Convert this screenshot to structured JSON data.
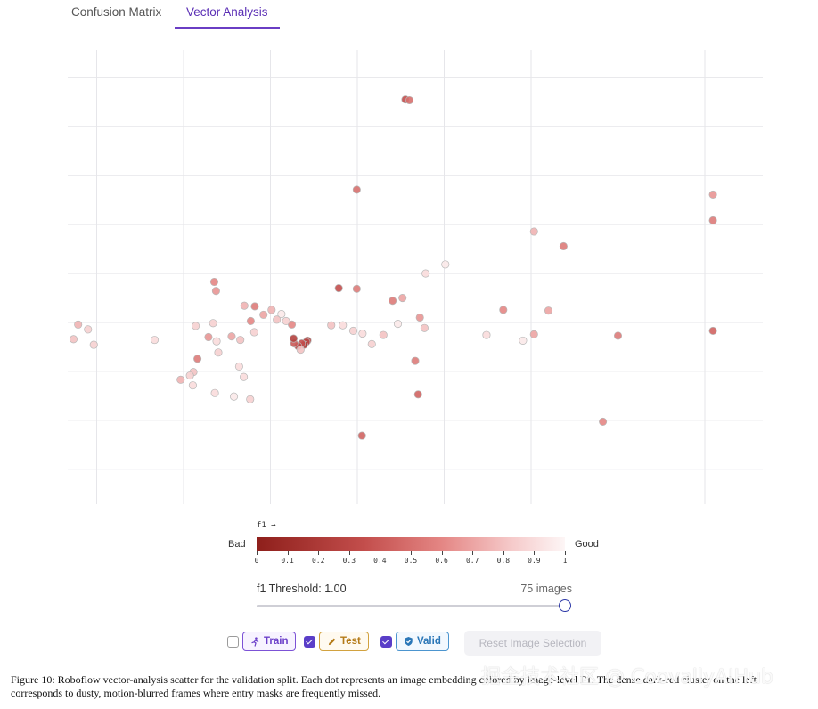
{
  "tabs": [
    {
      "label": "Confusion Matrix",
      "active": false
    },
    {
      "label": "Vector Analysis",
      "active": true
    }
  ],
  "chart_data": {
    "type": "scatter",
    "title": "",
    "xlabel": "",
    "ylabel": "",
    "grid": true,
    "color_metric": "f1",
    "points": [
      {
        "x": 2.33,
        "y": 5.79,
        "f1": 0.35
      },
      {
        "x": 2.4,
        "y": 5.78,
        "f1": 0.5
      },
      {
        "x": 4.02,
        "y": 2.78,
        "f1": 0.6
      },
      {
        "x": 4.55,
        "y": 2.43,
        "f1": 0.7
      },
      {
        "x": 4.55,
        "y": 3.9,
        "f1": 0.75
      },
      {
        "x": 4.8,
        "y": 2.77,
        "f1": 0.7
      },
      {
        "x": 5.06,
        "y": 3.69,
        "f1": 0.55
      },
      {
        "x": 5.74,
        "y": 1.18,
        "f1": 0.6
      },
      {
        "x": 6.0,
        "y": 2.41,
        "f1": 0.55
      },
      {
        "x": 7.64,
        "y": 2.48,
        "f1": 0.45
      },
      {
        "x": 7.64,
        "y": 4.06,
        "f1": 0.55
      },
      {
        "x": 7.64,
        "y": 4.43,
        "f1": 0.65
      },
      {
        "x": 4.36,
        "y": 2.34,
        "f1": 0.95
      },
      {
        "x": 3.73,
        "y": 2.42,
        "f1": 0.9
      },
      {
        "x": 2.55,
        "y": 1.57,
        "f1": 0.45
      },
      {
        "x": 2.66,
        "y": 2.52,
        "f1": 0.8
      },
      {
        "x": 2.58,
        "y": 2.67,
        "f1": 0.65
      },
      {
        "x": 2.5,
        "y": 2.05,
        "f1": 0.55
      },
      {
        "x": 2.2,
        "y": 2.58,
        "f1": 0.95
      },
      {
        "x": 2.28,
        "y": 2.95,
        "f1": 0.7
      },
      {
        "x": 2.11,
        "y": 2.91,
        "f1": 0.55
      },
      {
        "x": 1.95,
        "y": 2.42,
        "f1": 0.8
      },
      {
        "x": 1.75,
        "y": 2.29,
        "f1": 0.85
      },
      {
        "x": 1.59,
        "y": 2.44,
        "f1": 0.9
      },
      {
        "x": 1.43,
        "y": 2.48,
        "f1": 0.85
      },
      {
        "x": 1.49,
        "y": 3.08,
        "f1": 0.55
      },
      {
        "x": 1.25,
        "y": 2.56,
        "f1": 0.9
      },
      {
        "x": 1.05,
        "y": 2.56,
        "f1": 0.8
      },
      {
        "x": 1.49,
        "y": 4.5,
        "f1": 0.5
      },
      {
        "x": 1.58,
        "y": 0.98,
        "f1": 0.45
      },
      {
        "x": 1.18,
        "y": 3.09,
        "f1": 0.35
      },
      {
        "x": 0.64,
        "y": 2.34,
        "f1": 0.25
      },
      {
        "x": 0.62,
        "y": 2.32,
        "f1": 0.3
      },
      {
        "x": 0.58,
        "y": 2.28,
        "f1": 0.2
      },
      {
        "x": 0.54,
        "y": 2.3,
        "f1": 0.35
      },
      {
        "x": 0.48,
        "y": 2.26,
        "f1": 0.3
      },
      {
        "x": 0.41,
        "y": 2.3,
        "f1": 0.4
      },
      {
        "x": 0.4,
        "y": 2.37,
        "f1": 0.25
      },
      {
        "x": 0.52,
        "y": 2.21,
        "f1": 0.8
      },
      {
        "x": 0.37,
        "y": 2.57,
        "f1": 0.6
      },
      {
        "x": 0.27,
        "y": 2.62,
        "f1": 0.85
      },
      {
        "x": 0.19,
        "y": 2.72,
        "f1": 0.95
      },
      {
        "x": 0.11,
        "y": 2.64,
        "f1": 0.8
      },
      {
        "x": 0.02,
        "y": 2.78,
        "f1": 0.75
      },
      {
        "x": -0.12,
        "y": 2.71,
        "f1": 0.7
      },
      {
        "x": -0.27,
        "y": 2.83,
        "f1": 0.55
      },
      {
        "x": -0.34,
        "y": 2.62,
        "f1": 0.6
      },
      {
        "x": -0.28,
        "y": 2.46,
        "f1": 0.85
      },
      {
        "x": -0.45,
        "y": 2.84,
        "f1": 0.75
      },
      {
        "x": -0.52,
        "y": 2.35,
        "f1": 0.8
      },
      {
        "x": -0.67,
        "y": 2.4,
        "f1": 0.7
      },
      {
        "x": -0.93,
        "y": 2.33,
        "f1": 0.9
      },
      {
        "x": -1.07,
        "y": 2.39,
        "f1": 0.65
      },
      {
        "x": -1.26,
        "y": 2.08,
        "f1": 0.55
      },
      {
        "x": -0.97,
        "y": 3.18,
        "f1": 0.6
      },
      {
        "x": -0.94,
        "y": 3.05,
        "f1": 0.65
      },
      {
        "x": -0.99,
        "y": 2.59,
        "f1": 0.85
      },
      {
        "x": -1.29,
        "y": 2.55,
        "f1": 0.85
      },
      {
        "x": -1.33,
        "y": 1.89,
        "f1": 0.8
      },
      {
        "x": -1.34,
        "y": 1.7,
        "f1": 0.9
      },
      {
        "x": -1.39,
        "y": 1.84,
        "f1": 0.85
      },
      {
        "x": -1.55,
        "y": 1.78,
        "f1": 0.75
      },
      {
        "x": -2.0,
        "y": 2.35,
        "f1": 0.9
      },
      {
        "x": -3.15,
        "y": 2.5,
        "f1": 0.85
      },
      {
        "x": -3.32,
        "y": 2.57,
        "f1": 0.75
      },
      {
        "x": -3.4,
        "y": 2.36,
        "f1": 0.8
      },
      {
        "x": -3.05,
        "y": 2.28,
        "f1": 0.85
      },
      {
        "x": -0.96,
        "y": 1.59,
        "f1": 0.9
      },
      {
        "x": -0.63,
        "y": 1.54,
        "f1": 0.95
      },
      {
        "x": -0.35,
        "y": 1.5,
        "f1": 0.85
      },
      {
        "x": -0.9,
        "y": 2.17,
        "f1": 0.85
      },
      {
        "x": -0.54,
        "y": 1.97,
        "f1": 0.9
      },
      {
        "x": -0.46,
        "y": 1.82,
        "f1": 0.9
      },
      {
        "x": 3.02,
        "y": 3.43,
        "f1": 0.95
      },
      {
        "x": 2.68,
        "y": 3.3,
        "f1": 0.9
      }
    ]
  },
  "colorbar": {
    "metric_label": "f1 →",
    "bad_label": "Bad",
    "good_label": "Good",
    "ticks": [
      "0",
      "0.1",
      "0.2",
      "0.3",
      "0.4",
      "0.5",
      "0.6",
      "0.7",
      "0.8",
      "0.9",
      "1"
    ]
  },
  "threshold": {
    "label": "f1 Threshold: 1.00",
    "value": 1.0,
    "count_text": "75 images"
  },
  "filters": [
    {
      "label": "Train",
      "checked": false,
      "icon": "runner-icon"
    },
    {
      "label": "Test",
      "checked": true,
      "icon": "pencil-icon"
    },
    {
      "label": "Valid",
      "checked": true,
      "icon": "shield-check-icon"
    }
  ],
  "reset_button": "Reset Image Selection",
  "caption": "Figure 10: Roboflow vector-analysis scatter for the validation split. Each dot represents an image embedding colored by image-level F1. The dense dark-red cluster on the left corresponds to dusty, motion-blurred frames where entry masks are frequently missed.",
  "watermark": "掘金技术社区 @ CoovallyAIHub",
  "colors": {
    "accent": "#5b2fb5",
    "bad": "#8e1f1b",
    "good": "#fdf6f6",
    "train": "#7c52d6",
    "test": "#d2a23f",
    "valid": "#4c95cf"
  }
}
